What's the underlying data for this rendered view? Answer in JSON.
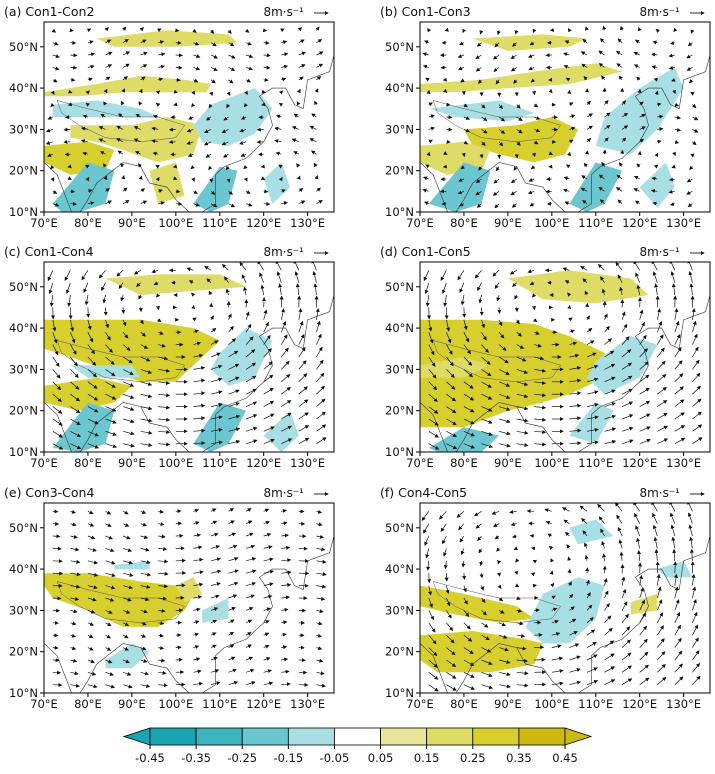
{
  "chart_data": {
    "type": "heatmap",
    "panels": [
      {
        "label": "(a) Con1-Con2"
      },
      {
        "label": "(b) Con1-Con3"
      },
      {
        "label": "(c) Con1-Con4"
      },
      {
        "label": "(d) Con1-Con5"
      },
      {
        "label": "(e) Con3-Con4"
      },
      {
        "label": "(f) Con4-Con5"
      }
    ],
    "vector_ref_label": "8m·s⁻¹",
    "x_ticks": [
      "70°E",
      "80°E",
      "90°E",
      "100°E",
      "110°E",
      "120°E",
      "130°E"
    ],
    "x_values": [
      70,
      80,
      90,
      100,
      110,
      120,
      130
    ],
    "y_ticks": [
      "10°N",
      "20°N",
      "30°N",
      "40°N",
      "50°N"
    ],
    "y_values": [
      10,
      20,
      30,
      40,
      50
    ],
    "xlim": [
      70,
      136
    ],
    "ylim": [
      10,
      56
    ],
    "colorbar": {
      "tick_labels": [
        "-0.45",
        "-0.35",
        "-0.25",
        "-0.15",
        "-0.05",
        "0.05",
        "0.15",
        "0.25",
        "0.35",
        "0.45"
      ],
      "levels": [
        -0.45,
        -0.35,
        -0.25,
        -0.15,
        -0.05,
        0.05,
        0.15,
        0.25,
        0.35,
        0.45
      ],
      "colors": [
        "#1aa3b2",
        "#3fb2c0",
        "#6cc6d0",
        "#a8dfe4",
        "#ffffff",
        "#e8e69a",
        "#dedb66",
        "#d6cf2e",
        "#ccba12"
      ],
      "extend": "both"
    }
  }
}
